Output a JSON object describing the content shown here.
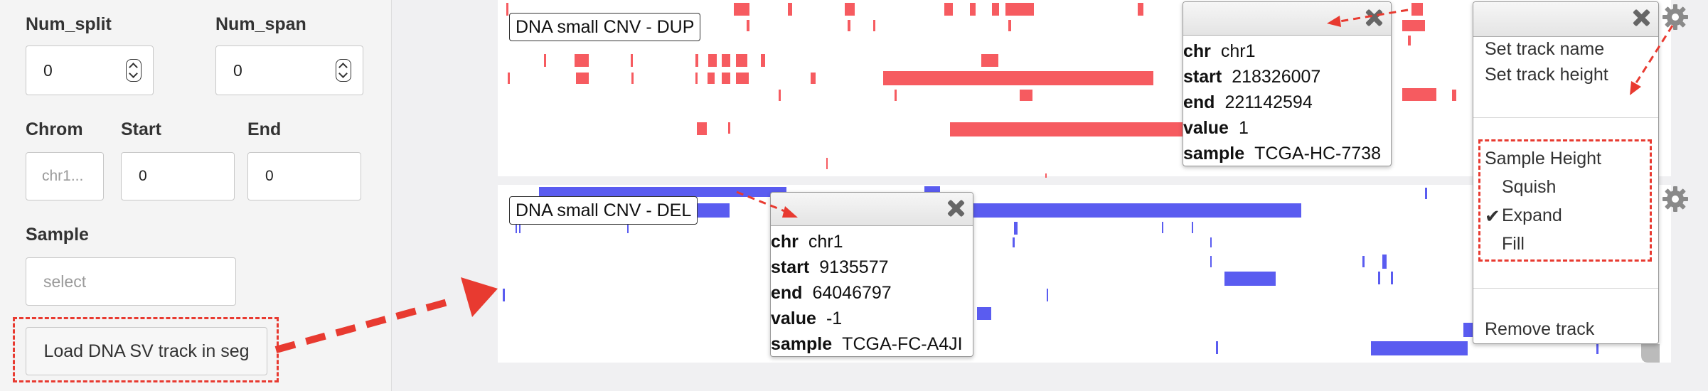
{
  "controls": {
    "num_split": {
      "label": "Num_split",
      "value": "0"
    },
    "num_span": {
      "label": "Num_span",
      "value": "0"
    },
    "chrom": {
      "label": "Chrom",
      "value": "chr1..."
    },
    "start": {
      "label": "Start",
      "value": "0"
    },
    "end": {
      "label": "End",
      "value": "0"
    },
    "sample": {
      "label": "Sample",
      "placeholder": "select"
    },
    "load_button": "Load DNA SV track in seg"
  },
  "tracks": [
    {
      "name": "DNA small CNV - DUP",
      "color": "#f65b60"
    },
    {
      "name": "DNA small CNV - DEL",
      "color": "#5a5cf0"
    }
  ],
  "popup_dup": {
    "rows": [
      {
        "key": "chr",
        "value": "chr1"
      },
      {
        "key": "start",
        "value": "218326007"
      },
      {
        "key": "end",
        "value": "221142594"
      },
      {
        "key": "value",
        "value": "1"
      },
      {
        "key": "sample",
        "value": "TCGA-HC-7738"
      }
    ]
  },
  "popup_del": {
    "rows": [
      {
        "key": "chr",
        "value": "chr1"
      },
      {
        "key": "start",
        "value": "9135577"
      },
      {
        "key": "end",
        "value": "64046797"
      },
      {
        "key": "value",
        "value": "-1"
      },
      {
        "key": "sample",
        "value": "TCGA-FC-A4JI"
      }
    ]
  },
  "track_menu": {
    "set_track_name": "Set track name",
    "set_track_height": "Set track height",
    "sample_height": "Sample Height",
    "options": [
      "Squish",
      "Expand",
      "Fill"
    ],
    "selected": "Expand",
    "remove_track": "Remove track"
  },
  "annotation_color": "#e83a30",
  "icons": [
    "gear-icon",
    "close-icon",
    "checkmark-icon",
    "spinner-arrows-icon"
  ]
}
